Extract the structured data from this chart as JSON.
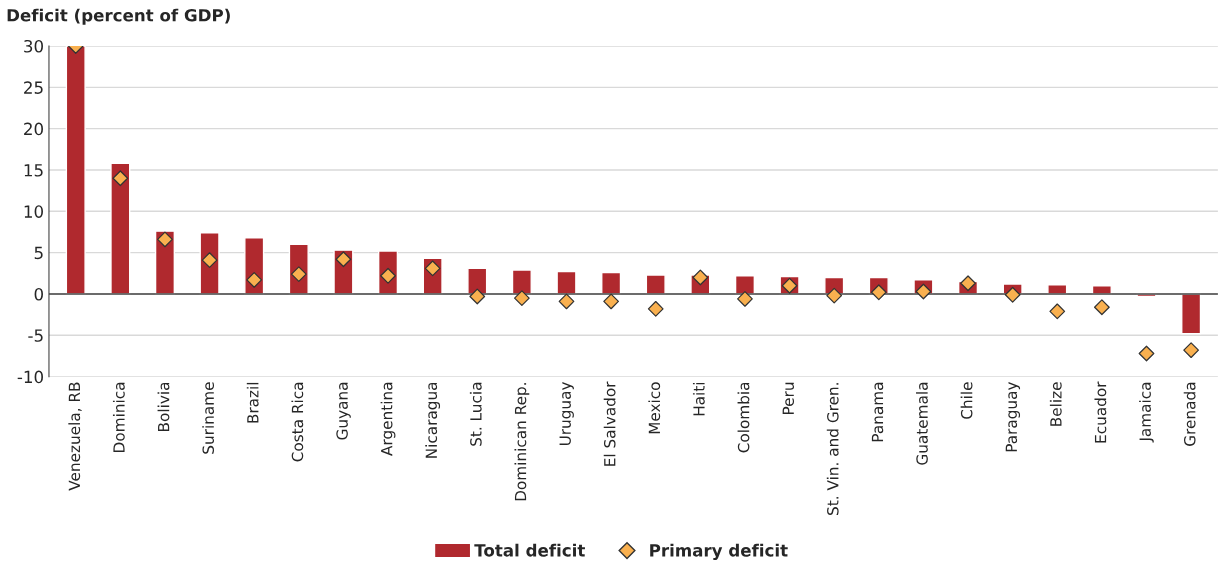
{
  "chart_data": {
    "type": "bar",
    "ylabel": "Deficit (percent of GDP)",
    "categories": [
      "Venezuela, RB",
      "Dominica",
      "Bolivia",
      "Suriname",
      "Brazil",
      "Costa Rica",
      "Guyana",
      "Argentina",
      "Nicaragua",
      "St. Lucia",
      "Dominican Rep.",
      "Uruguay",
      "El Salvador",
      "Mexico",
      "Haiti",
      "Colombia",
      "Peru",
      "St. Vin. and Gren.",
      "Panama",
      "Guatemala",
      "Chile",
      "Paraguay",
      "Belize",
      "Ecuador",
      "Jamaica",
      "Grenada"
    ],
    "series": [
      {
        "name": "Total deficit",
        "color": "#b0292e",
        "values": [
          30,
          15.8,
          7.6,
          7.4,
          6.8,
          6.0,
          5.3,
          5.2,
          4.3,
          3.1,
          2.9,
          2.7,
          2.6,
          2.3,
          2.3,
          2.2,
          2.1,
          2.0,
          2.0,
          1.7,
          1.5,
          1.2,
          1.1,
          1.0,
          -0.3,
          -4.8
        ]
      },
      {
        "name": "Primary deficit",
        "type": "scatter",
        "color": "#f9b04f",
        "marker": "diamond",
        "values": [
          30,
          14.0,
          6.6,
          4.1,
          1.7,
          2.4,
          4.2,
          2.2,
          3.1,
          -0.3,
          -0.5,
          -0.9,
          -0.9,
          -1.8,
          2.0,
          -0.6,
          1.0,
          -0.2,
          0.2,
          0.3,
          1.3,
          -0.1,
          -2.1,
          -1.6,
          -7.2,
          -6.8
        ]
      }
    ],
    "ylim": [
      -10,
      30
    ],
    "yticks": [
      -10,
      -5,
      0,
      5,
      10,
      15,
      20,
      25,
      30
    ],
    "grid": "y",
    "legend": "bottom"
  }
}
